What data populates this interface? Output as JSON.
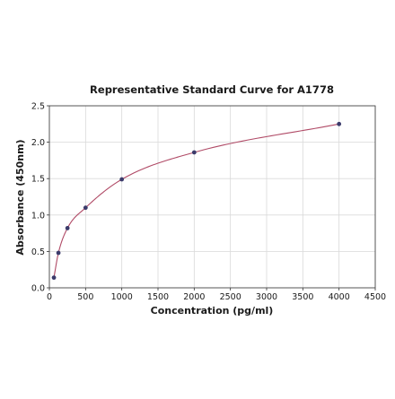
{
  "chart_data": {
    "type": "scatter",
    "title": "Representative Standard Curve for A1778",
    "xlabel": "Concentration (pg/ml)",
    "ylabel": "Absorbance (450nm)",
    "xlim": [
      0,
      4500
    ],
    "ylim": [
      0,
      2.5
    ],
    "xticks": [
      "0",
      "500",
      "1000",
      "1500",
      "2000",
      "2500",
      "3000",
      "3500",
      "4000",
      "4500"
    ],
    "yticks": [
      "0.0",
      "0.5",
      "1.0",
      "1.5",
      "2.0",
      "2.5"
    ],
    "grid": true,
    "series": [
      {
        "points": [
          {
            "x": 62.5,
            "y": 0.14
          },
          {
            "x": 125,
            "y": 0.48
          },
          {
            "x": 250,
            "y": 0.82
          },
          {
            "x": 500,
            "y": 1.1
          },
          {
            "x": 1000,
            "y": 1.49
          },
          {
            "x": 2000,
            "y": 1.86
          },
          {
            "x": 4000,
            "y": 2.25
          }
        ],
        "marker_color": "#3b3b6b",
        "fit_curve": true,
        "fit_color": "#b04a66"
      }
    ]
  }
}
